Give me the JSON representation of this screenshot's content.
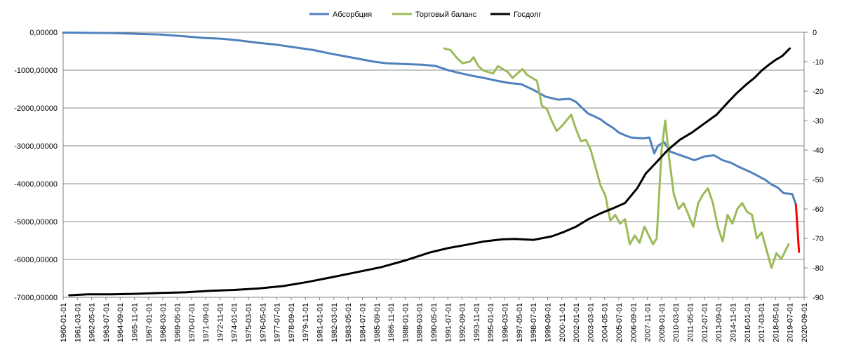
{
  "chart_data": {
    "type": "line",
    "legend": {
      "placement": "top",
      "entries": [
        {
          "name": "Абсорбция",
          "color": "#4f81bd"
        },
        {
          "name": "Торговый баланс",
          "color": "#9bbb59"
        },
        {
          "name": "Госдолг",
          "color": "#000000"
        }
      ]
    },
    "x_ticks": [
      "1960-01-01",
      "1961-03-01",
      "1962-05-01",
      "1963-07-01",
      "1964-09-01",
      "1965-11-01",
      "1967-01-01",
      "1968-03-01",
      "1969-05-01",
      "1970-07-01",
      "1971-09-01",
      "1972-11-01",
      "1974-01-01",
      "1975-03-01",
      "1976-05-01",
      "1977-07-01",
      "1978-09-01",
      "1979-11-01",
      "1981-01-01",
      "1982-03-01",
      "1983-05-01",
      "1984-07-01",
      "1985-09-01",
      "1986-11-01",
      "1988-01-01",
      "1989-03-01",
      "1990-05-01",
      "1991-07-01",
      "1992-09-01",
      "1993-11-01",
      "1995-01-01",
      "1996-03-01",
      "1997-05-01",
      "1998-07-01",
      "1999-09-01",
      "2000-11-01",
      "2002-01-01",
      "2003-03-01",
      "2004-05-01",
      "2005-07-01",
      "2006-09-01",
      "2007-11-01",
      "2009-01-01",
      "2010-03-01",
      "2011-05-01",
      "2012-07-01",
      "2013-09-01",
      "2014-11-01",
      "2016-01-01",
      "2017-03-01",
      "2018-05-01",
      "2019-07-01",
      "2020-09-01"
    ],
    "y_left": {
      "ticks": [
        "0,00000",
        "-1000,00000",
        "-2000,00000",
        "-3000,00000",
        "-4000,00000",
        "-5000,00000",
        "-6000,00000",
        "-7000,00000"
      ],
      "ylim": [
        -7000,
        0
      ],
      "grid": true
    },
    "y_right": {
      "ticks": [
        "0",
        "-10",
        "-20",
        "-30",
        "-40",
        "-50",
        "-60",
        "-70",
        "-80",
        "-90"
      ],
      "ylim": [
        -90,
        0
      ]
    },
    "xlim": [
      1960.0,
      2020.67
    ],
    "series": [
      {
        "name": "Абсорбция",
        "axis": "left",
        "color": "#4f81bd",
        "points": [
          [
            1960.0,
            -10
          ],
          [
            1962.0,
            -15
          ],
          [
            1964.0,
            -20
          ],
          [
            1966.0,
            -40
          ],
          [
            1968.0,
            -60
          ],
          [
            1970.0,
            -110
          ],
          [
            1971.5,
            -150
          ],
          [
            1973.0,
            -170
          ],
          [
            1974.5,
            -220
          ],
          [
            1976.0,
            -280
          ],
          [
            1977.5,
            -330
          ],
          [
            1979.0,
            -400
          ],
          [
            1980.5,
            -470
          ],
          [
            1982.0,
            -570
          ],
          [
            1983.5,
            -660
          ],
          [
            1984.5,
            -720
          ],
          [
            1985.5,
            -780
          ],
          [
            1986.5,
            -820
          ],
          [
            1988.0,
            -840
          ],
          [
            1989.5,
            -860
          ],
          [
            1990.5,
            -890
          ],
          [
            1991.5,
            -1000
          ],
          [
            1992.5,
            -1080
          ],
          [
            1993.5,
            -1150
          ],
          [
            1994.5,
            -1210
          ],
          [
            1995.5,
            -1280
          ],
          [
            1996.5,
            -1340
          ],
          [
            1997.5,
            -1370
          ],
          [
            1998.5,
            -1520
          ],
          [
            1999.5,
            -1700
          ],
          [
            2000.5,
            -1780
          ],
          [
            2001.5,
            -1760
          ],
          [
            2002.0,
            -1840
          ],
          [
            2002.5,
            -2000
          ],
          [
            2003.0,
            -2150
          ],
          [
            2003.5,
            -2220
          ],
          [
            2004.0,
            -2300
          ],
          [
            2004.5,
            -2420
          ],
          [
            2005.0,
            -2520
          ],
          [
            2005.5,
            -2650
          ],
          [
            2006.0,
            -2720
          ],
          [
            2006.5,
            -2780
          ],
          [
            2007.5,
            -2800
          ],
          [
            2008.0,
            -2780
          ],
          [
            2008.4,
            -3200
          ],
          [
            2008.7,
            -3000
          ],
          [
            2009.2,
            -2900
          ],
          [
            2009.7,
            -3150
          ],
          [
            2010.3,
            -3220
          ],
          [
            2011.0,
            -3300
          ],
          [
            2011.7,
            -3380
          ],
          [
            2012.5,
            -3280
          ],
          [
            2013.3,
            -3250
          ],
          [
            2014.0,
            -3380
          ],
          [
            2014.7,
            -3450
          ],
          [
            2015.3,
            -3550
          ],
          [
            2016.2,
            -3680
          ],
          [
            2016.8,
            -3780
          ],
          [
            2017.5,
            -3900
          ],
          [
            2018.0,
            -4020
          ],
          [
            2018.5,
            -4100
          ],
          [
            2019.0,
            -4250
          ],
          [
            2019.7,
            -4270
          ],
          [
            2020.0,
            -4550
          ]
        ]
      },
      {
        "name": "Торговый баланс",
        "axis": "right",
        "color": "#9bbb59",
        "points": [
          [
            1991.2,
            -5.5
          ],
          [
            1991.7,
            -6.0
          ],
          [
            1992.3,
            -9.0
          ],
          [
            1992.7,
            -10.5
          ],
          [
            1993.3,
            -10.0
          ],
          [
            1993.6,
            -8.5
          ],
          [
            1994.0,
            -11.5
          ],
          [
            1994.4,
            -13.0
          ],
          [
            1994.8,
            -13.5
          ],
          [
            1995.2,
            -14.0
          ],
          [
            1995.6,
            -11.5
          ],
          [
            1996.0,
            -12.5
          ],
          [
            1996.4,
            -13.5
          ],
          [
            1996.8,
            -15.5
          ],
          [
            1997.2,
            -14.0
          ],
          [
            1997.6,
            -12.5
          ],
          [
            1998.0,
            -14.5
          ],
          [
            1998.4,
            -15.5
          ],
          [
            1998.8,
            -16.5
          ],
          [
            1999.2,
            -25.0
          ],
          [
            1999.6,
            -26.0
          ],
          [
            2000.0,
            -30.0
          ],
          [
            2000.4,
            -33.5
          ],
          [
            2000.8,
            -32.0
          ],
          [
            2001.2,
            -30.0
          ],
          [
            2001.6,
            -28.0
          ],
          [
            2002.0,
            -33.0
          ],
          [
            2002.4,
            -37.0
          ],
          [
            2002.8,
            -36.5
          ],
          [
            2003.2,
            -40.0
          ],
          [
            2003.6,
            -46.0
          ],
          [
            2004.0,
            -52.0
          ],
          [
            2004.4,
            -55.5
          ],
          [
            2004.8,
            -64.0
          ],
          [
            2005.2,
            -62.0
          ],
          [
            2005.6,
            -65.0
          ],
          [
            2006.0,
            -63.5
          ],
          [
            2006.4,
            -72.0
          ],
          [
            2006.8,
            -69.0
          ],
          [
            2007.2,
            -71.5
          ],
          [
            2007.6,
            -66.0
          ],
          [
            2008.0,
            -69.5
          ],
          [
            2008.3,
            -72.0
          ],
          [
            2008.6,
            -70.0
          ],
          [
            2009.0,
            -40.0
          ],
          [
            2009.3,
            -30.0
          ],
          [
            2009.6,
            -42.0
          ],
          [
            2010.0,
            -55.0
          ],
          [
            2010.4,
            -60.0
          ],
          [
            2010.8,
            -58.0
          ],
          [
            2011.2,
            -62.0
          ],
          [
            2011.6,
            -66.0
          ],
          [
            2012.0,
            -58.0
          ],
          [
            2012.4,
            -55.0
          ],
          [
            2012.8,
            -53.0
          ],
          [
            2013.2,
            -58.0
          ],
          [
            2013.6,
            -66.0
          ],
          [
            2014.0,
            -71.0
          ],
          [
            2014.4,
            -62.0
          ],
          [
            2014.8,
            -65.0
          ],
          [
            2015.2,
            -60.0
          ],
          [
            2015.6,
            -58.0
          ],
          [
            2016.0,
            -61.0
          ],
          [
            2016.4,
            -62.0
          ],
          [
            2016.8,
            -70.0
          ],
          [
            2017.2,
            -68.0
          ],
          [
            2017.6,
            -74.0
          ],
          [
            2018.0,
            -80.0
          ],
          [
            2018.4,
            -75.0
          ],
          [
            2018.8,
            -77.0
          ],
          [
            2019.4,
            -72.0
          ]
        ]
      },
      {
        "name": "Госдолг",
        "axis": "right",
        "color": "#000000",
        "points": [
          [
            1960.5,
            -89.3
          ],
          [
            1962.0,
            -89.0
          ],
          [
            1964.0,
            -89.0
          ],
          [
            1966.0,
            -88.8
          ],
          [
            1968.0,
            -88.5
          ],
          [
            1970.0,
            -88.3
          ],
          [
            1972.0,
            -87.8
          ],
          [
            1974.0,
            -87.5
          ],
          [
            1976.0,
            -87.0
          ],
          [
            1978.0,
            -86.2
          ],
          [
            1980.0,
            -84.8
          ],
          [
            1982.0,
            -83.2
          ],
          [
            1984.0,
            -81.5
          ],
          [
            1986.0,
            -79.8
          ],
          [
            1988.0,
            -77.5
          ],
          [
            1990.0,
            -74.8
          ],
          [
            1991.5,
            -73.3
          ],
          [
            1993.0,
            -72.2
          ],
          [
            1994.5,
            -71.0
          ],
          [
            1996.0,
            -70.3
          ],
          [
            1997.0,
            -70.2
          ],
          [
            1998.5,
            -70.5
          ],
          [
            2000.0,
            -69.3
          ],
          [
            2001.0,
            -67.8
          ],
          [
            2002.0,
            -66.0
          ],
          [
            2003.0,
            -63.5
          ],
          [
            2004.0,
            -61.5
          ],
          [
            2005.0,
            -59.8
          ],
          [
            2006.0,
            -58.0
          ],
          [
            2007.0,
            -53.0
          ],
          [
            2007.7,
            -48.0
          ],
          [
            2008.5,
            -44.5
          ],
          [
            2009.5,
            -40.0
          ],
          [
            2010.5,
            -36.5
          ],
          [
            2011.5,
            -34.0
          ],
          [
            2012.5,
            -31.0
          ],
          [
            2013.5,
            -28.0
          ],
          [
            2014.5,
            -23.5
          ],
          [
            2015.2,
            -20.5
          ],
          [
            2016.0,
            -17.5
          ],
          [
            2016.6,
            -15.5
          ],
          [
            2017.2,
            -13.0
          ],
          [
            2017.8,
            -11.0
          ],
          [
            2018.3,
            -9.5
          ],
          [
            2018.9,
            -8.0
          ],
          [
            2019.5,
            -5.5
          ]
        ]
      },
      {
        "name": "",
        "axis": "left",
        "color": "#ff0000",
        "points": [
          [
            2020.0,
            -4550
          ],
          [
            2020.25,
            -5800
          ]
        ]
      }
    ]
  }
}
